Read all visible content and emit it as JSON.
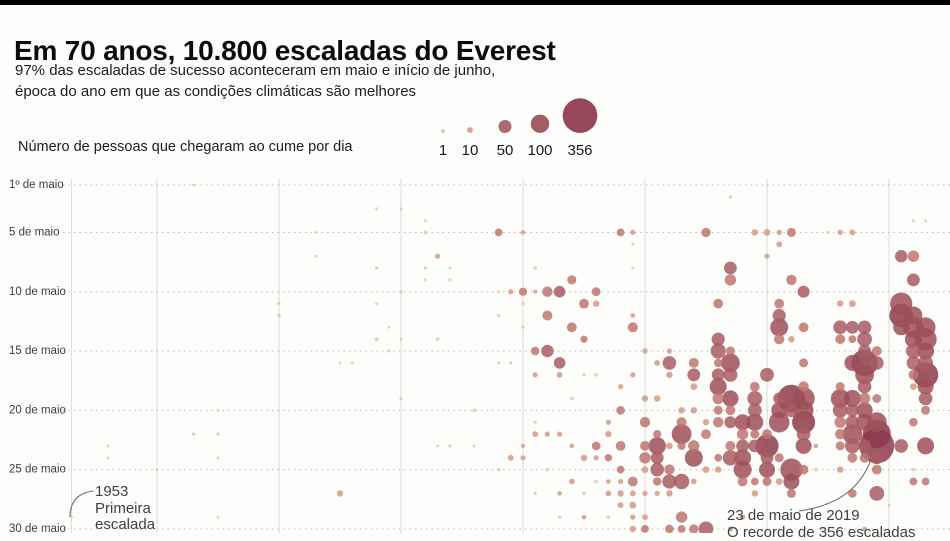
{
  "header": {
    "title": "Em 70 anos, 10.800 escaladas do Everest",
    "subtitle_line1": "97% das escaladas de sucesso aconteceram em maio e início de junho,",
    "subtitle_line2": "época do ano em que as condições climáticas são melhores"
  },
  "legend": {
    "label": "Número de pessoas que chegaram ao cume por dia",
    "items": [
      {
        "value": 1,
        "text": "1"
      },
      {
        "value": 10,
        "text": "10"
      },
      {
        "value": 50,
        "text": "50"
      },
      {
        "value": 100,
        "text": "100"
      },
      {
        "value": 356,
        "text": "356"
      }
    ]
  },
  "annotations": {
    "first_ascent": {
      "line1": "1953",
      "line2": "Primeira",
      "line3": "escalada"
    },
    "record_day": {
      "line1": "23 de maio de 2019",
      "line2": "O recorde de 356 escaladas"
    }
  },
  "chart_data": {
    "type": "scatter",
    "subtype": "bubble-timeline",
    "x_axis": {
      "unit": "year",
      "min": 1953,
      "max": 2023,
      "gridline_years": [
        1953,
        1960,
        1970,
        1980,
        1990,
        2000,
        2010,
        2020
      ]
    },
    "y_axis": {
      "unit": "day of May",
      "rows": [
        {
          "day": 1,
          "label": "1º de maio"
        },
        {
          "day": 5,
          "label": "5 de maio"
        },
        {
          "day": 10,
          "label": "10 de maio"
        },
        {
          "day": 15,
          "label": "15 de maio"
        },
        {
          "day": 20,
          "label": "20 de maio"
        },
        {
          "day": 25,
          "label": "25 de maio"
        },
        {
          "day": 30,
          "label": "30 de maio"
        }
      ]
    },
    "size_legend_counts": [
      1,
      10,
      50,
      100,
      356
    ],
    "color_scale": {
      "thresholds": [
        5,
        15,
        40,
        75,
        150
      ],
      "colors": [
        "#ecc49c",
        "#d49a82",
        "#bd7570",
        "#a85c62",
        "#9d4f58",
        "#8c3a4c"
      ]
    },
    "max_point": {
      "year": 2019,
      "day": 23,
      "summits": 356
    },
    "point_format": [
      "year",
      "day_of_may",
      "summits"
    ],
    "points": [
      [
        1953,
        29,
        2
      ],
      [
        1956,
        23,
        2
      ],
      [
        1956,
        24,
        2
      ],
      [
        1960,
        25,
        2
      ],
      [
        1963,
        1,
        2
      ],
      [
        1963,
        22,
        4
      ],
      [
        1965,
        20,
        2
      ],
      [
        1965,
        22,
        3
      ],
      [
        1965,
        24,
        2
      ],
      [
        1965,
        29,
        2
      ],
      [
        1970,
        11,
        3
      ],
      [
        1970,
        12,
        4
      ],
      [
        1973,
        5,
        2
      ],
      [
        1973,
        7,
        2
      ],
      [
        1975,
        16,
        2
      ],
      [
        1975,
        27,
        12
      ],
      [
        1976,
        16,
        2
      ],
      [
        1978,
        3,
        2
      ],
      [
        1978,
        8,
        3
      ],
      [
        1978,
        11,
        2
      ],
      [
        1978,
        14,
        4
      ],
      [
        1979,
        13,
        2
      ],
      [
        1979,
        15,
        3
      ],
      [
        1980,
        3,
        2
      ],
      [
        1980,
        10,
        3
      ],
      [
        1980,
        14,
        2
      ],
      [
        1980,
        19,
        3
      ],
      [
        1982,
        4,
        2
      ],
      [
        1982,
        5,
        4
      ],
      [
        1982,
        8,
        3
      ],
      [
        1982,
        9,
        2
      ],
      [
        1983,
        7,
        8
      ],
      [
        1983,
        14,
        4
      ],
      [
        1983,
        23,
        2
      ],
      [
        1984,
        8,
        2
      ],
      [
        1984,
        9,
        3
      ],
      [
        1984,
        23,
        3
      ],
      [
        1986,
        20,
        4
      ],
      [
        1986,
        23,
        2
      ],
      [
        1988,
        5,
        18
      ],
      [
        1988,
        10,
        2
      ],
      [
        1988,
        12,
        3
      ],
      [
        1988,
        16,
        2
      ],
      [
        1988,
        25,
        3
      ],
      [
        1989,
        10,
        8
      ],
      [
        1989,
        16,
        3
      ],
      [
        1989,
        24,
        10
      ],
      [
        1990,
        5,
        6
      ],
      [
        1990,
        10,
        20
      ],
      [
        1990,
        11,
        4
      ],
      [
        1990,
        13,
        3
      ],
      [
        1990,
        23,
        5
      ],
      [
        1990,
        24,
        8
      ],
      [
        1991,
        8,
        4
      ],
      [
        1991,
        10,
        5
      ],
      [
        1991,
        15,
        22
      ],
      [
        1991,
        17,
        8
      ],
      [
        1991,
        21,
        3
      ],
      [
        1991,
        22,
        10
      ],
      [
        1991,
        27,
        3
      ],
      [
        1992,
        10,
        32
      ],
      [
        1992,
        12,
        30
      ],
      [
        1992,
        15,
        45
      ],
      [
        1992,
        22,
        8
      ],
      [
        1992,
        25,
        4
      ],
      [
        1993,
        10,
        40
      ],
      [
        1993,
        16,
        40
      ],
      [
        1993,
        17,
        10
      ],
      [
        1993,
        22,
        8
      ],
      [
        1993,
        27,
        6
      ],
      [
        1993,
        29,
        3
      ],
      [
        1994,
        9,
        25
      ],
      [
        1994,
        13,
        28
      ],
      [
        1994,
        19,
        4
      ],
      [
        1994,
        23,
        6
      ],
      [
        1994,
        26,
        10
      ],
      [
        1995,
        11,
        28
      ],
      [
        1995,
        14,
        15
      ],
      [
        1995,
        17,
        3
      ],
      [
        1995,
        24,
        12
      ],
      [
        1995,
        27,
        4
      ],
      [
        1995,
        29,
        6
      ],
      [
        1996,
        10,
        23
      ],
      [
        1996,
        11,
        12
      ],
      [
        1996,
        17,
        4
      ],
      [
        1996,
        23,
        22
      ],
      [
        1996,
        24,
        8
      ],
      [
        1996,
        26,
        4
      ],
      [
        1997,
        21,
        8
      ],
      [
        1997,
        22,
        12
      ],
      [
        1997,
        24,
        16
      ],
      [
        1997,
        26,
        6
      ],
      [
        1997,
        27,
        10
      ],
      [
        1997,
        29,
        4
      ],
      [
        1998,
        5,
        18
      ],
      [
        1998,
        18,
        8
      ],
      [
        1998,
        20,
        22
      ],
      [
        1998,
        23,
        28
      ],
      [
        1998,
        25,
        18
      ],
      [
        1998,
        26,
        8
      ],
      [
        1998,
        27,
        12
      ],
      [
        1998,
        28,
        10
      ],
      [
        1999,
        5,
        8
      ],
      [
        1999,
        6,
        2
      ],
      [
        1999,
        8,
        2
      ],
      [
        1999,
        12,
        6
      ],
      [
        1999,
        13,
        30
      ],
      [
        1999,
        17,
        8
      ],
      [
        1999,
        26,
        28
      ],
      [
        1999,
        27,
        10
      ],
      [
        1999,
        28,
        14
      ],
      [
        1999,
        29,
        8
      ],
      [
        1999,
        30,
        12
      ],
      [
        2000,
        15,
        8
      ],
      [
        2000,
        19,
        12
      ],
      [
        2000,
        21,
        32
      ],
      [
        2000,
        23,
        28
      ],
      [
        2000,
        24,
        38
      ],
      [
        2000,
        25,
        14
      ],
      [
        2000,
        27,
        8
      ],
      [
        2000,
        29,
        10
      ],
      [
        2000,
        30,
        18
      ],
      [
        2001,
        16,
        10
      ],
      [
        2001,
        19,
        12
      ],
      [
        2001,
        22,
        20
      ],
      [
        2001,
        23,
        89
      ],
      [
        2001,
        24,
        48
      ],
      [
        2001,
        25,
        55
      ],
      [
        2001,
        26,
        22
      ],
      [
        2001,
        27,
        8
      ],
      [
        2002,
        15,
        8
      ],
      [
        2002,
        16,
        54
      ],
      [
        2002,
        17,
        12
      ],
      [
        2002,
        23,
        14
      ],
      [
        2002,
        25,
        32
      ],
      [
        2002,
        26,
        60
      ],
      [
        2002,
        27,
        12
      ],
      [
        2002,
        30,
        22
      ],
      [
        2003,
        20,
        12
      ],
      [
        2003,
        21,
        30
      ],
      [
        2003,
        22,
        115
      ],
      [
        2003,
        23,
        20
      ],
      [
        2003,
        26,
        70
      ],
      [
        2003,
        29,
        38
      ],
      [
        2003,
        30,
        18
      ],
      [
        2004,
        16,
        28
      ],
      [
        2004,
        17,
        48
      ],
      [
        2004,
        18,
        14
      ],
      [
        2004,
        20,
        12
      ],
      [
        2004,
        23,
        38
      ],
      [
        2004,
        24,
        95
      ],
      [
        2004,
        26,
        10
      ],
      [
        2004,
        30,
        26
      ],
      [
        2005,
        5,
        26
      ],
      [
        2005,
        21,
        12
      ],
      [
        2005,
        22,
        28
      ],
      [
        2005,
        25,
        14
      ],
      [
        2005,
        30,
        65
      ],
      [
        2006,
        11,
        28
      ],
      [
        2006,
        14,
        52
      ],
      [
        2006,
        15,
        68
      ],
      [
        2006,
        16,
        22
      ],
      [
        2006,
        17,
        48
      ],
      [
        2006,
        18,
        85
      ],
      [
        2006,
        19,
        38
      ],
      [
        2006,
        20,
        24
      ],
      [
        2006,
        21,
        32
      ],
      [
        2006,
        24,
        18
      ],
      [
        2006,
        25,
        12
      ],
      [
        2007,
        2,
        3
      ],
      [
        2007,
        8,
        48
      ],
      [
        2007,
        9,
        38
      ],
      [
        2007,
        15,
        24
      ],
      [
        2007,
        16,
        105
      ],
      [
        2007,
        17,
        58
      ],
      [
        2007,
        19,
        78
      ],
      [
        2007,
        20,
        28
      ],
      [
        2007,
        21,
        42
      ],
      [
        2007,
        23,
        28
      ],
      [
        2007,
        24,
        70
      ],
      [
        2007,
        30,
        8
      ],
      [
        2008,
        21,
        76
      ],
      [
        2008,
        22,
        38
      ],
      [
        2008,
        23,
        48
      ],
      [
        2008,
        24,
        85
      ],
      [
        2008,
        25,
        95
      ],
      [
        2008,
        26,
        28
      ],
      [
        2008,
        29,
        8
      ],
      [
        2009,
        5,
        12
      ],
      [
        2009,
        18,
        28
      ],
      [
        2009,
        19,
        66
      ],
      [
        2009,
        20,
        56
      ],
      [
        2009,
        21,
        85
      ],
      [
        2009,
        22,
        24
      ],
      [
        2009,
        23,
        48
      ],
      [
        2009,
        26,
        18
      ],
      [
        2009,
        27,
        12
      ],
      [
        2010,
        5,
        14
      ],
      [
        2010,
        7,
        8
      ],
      [
        2010,
        17,
        56
      ],
      [
        2010,
        22,
        28
      ],
      [
        2010,
        23,
        160
      ],
      [
        2010,
        24,
        48
      ],
      [
        2010,
        25,
        75
      ],
      [
        2010,
        26,
        24
      ],
      [
        2011,
        5,
        8
      ],
      [
        2011,
        6,
        10
      ],
      [
        2011,
        11,
        28
      ],
      [
        2011,
        12,
        52
      ],
      [
        2011,
        13,
        95
      ],
      [
        2011,
        14,
        32
      ],
      [
        2011,
        19,
        42
      ],
      [
        2011,
        20,
        75
      ],
      [
        2011,
        21,
        125
      ],
      [
        2011,
        24,
        24
      ],
      [
        2011,
        26,
        14
      ],
      [
        2012,
        5,
        24
      ],
      [
        2012,
        9,
        32
      ],
      [
        2012,
        14,
        12
      ],
      [
        2012,
        19,
        225
      ],
      [
        2012,
        20,
        55
      ],
      [
        2012,
        25,
        145
      ],
      [
        2012,
        26,
        75
      ],
      [
        2012,
        27,
        24
      ],
      [
        2013,
        10,
        42
      ],
      [
        2013,
        13,
        28
      ],
      [
        2013,
        16,
        24
      ],
      [
        2013,
        18,
        32
      ],
      [
        2013,
        19,
        145
      ],
      [
        2013,
        20,
        115
      ],
      [
        2013,
        21,
        155
      ],
      [
        2013,
        22,
        55
      ],
      [
        2013,
        23,
        75
      ],
      [
        2013,
        25,
        28
      ],
      [
        2014,
        23,
        6
      ],
      [
        2014,
        25,
        4
      ],
      [
        2015,
        5,
        3
      ],
      [
        2016,
        5,
        8
      ],
      [
        2016,
        11,
        12
      ],
      [
        2016,
        13,
        56
      ],
      [
        2016,
        14,
        28
      ],
      [
        2016,
        18,
        24
      ],
      [
        2016,
        19,
        105
      ],
      [
        2016,
        20,
        65
      ],
      [
        2016,
        21,
        38
      ],
      [
        2016,
        22,
        32
      ],
      [
        2016,
        23,
        24
      ],
      [
        2016,
        25,
        12
      ],
      [
        2017,
        5,
        10
      ],
      [
        2017,
        11,
        14
      ],
      [
        2017,
        13,
        48
      ],
      [
        2017,
        14,
        18
      ],
      [
        2017,
        16,
        75
      ],
      [
        2017,
        19,
        85
      ],
      [
        2017,
        20,
        48
      ],
      [
        2017,
        21,
        55
      ],
      [
        2017,
        22,
        115
      ],
      [
        2017,
        23,
        65
      ],
      [
        2017,
        24,
        28
      ],
      [
        2017,
        27,
        22
      ],
      [
        2018,
        13,
        55
      ],
      [
        2018,
        14,
        65
      ],
      [
        2018,
        15,
        48
      ],
      [
        2018,
        16,
        210
      ],
      [
        2018,
        17,
        105
      ],
      [
        2018,
        18,
        55
      ],
      [
        2018,
        19,
        38
      ],
      [
        2018,
        20,
        75
      ],
      [
        2018,
        21,
        85
      ],
      [
        2018,
        23,
        48
      ],
      [
        2018,
        24,
        28
      ],
      [
        2018,
        30,
        6
      ],
      [
        2019,
        15,
        28
      ],
      [
        2019,
        16,
        55
      ],
      [
        2019,
        19,
        24
      ],
      [
        2019,
        21,
        115
      ],
      [
        2019,
        22,
        230
      ],
      [
        2019,
        23,
        356
      ],
      [
        2019,
        24,
        48
      ],
      [
        2019,
        25,
        28
      ],
      [
        2019,
        27,
        65
      ],
      [
        2020,
        28,
        2
      ],
      [
        2021,
        7,
        45
      ],
      [
        2021,
        11,
        145
      ],
      [
        2021,
        12,
        165
      ],
      [
        2021,
        13,
        75
      ],
      [
        2021,
        23,
        55
      ],
      [
        2022,
        4,
        2
      ],
      [
        2022,
        7,
        38
      ],
      [
        2022,
        9,
        48
      ],
      [
        2022,
        12,
        95
      ],
      [
        2022,
        13,
        125
      ],
      [
        2022,
        14,
        85
      ],
      [
        2022,
        15,
        65
      ],
      [
        2022,
        16,
        55
      ],
      [
        2022,
        17,
        28
      ],
      [
        2022,
        18,
        14
      ],
      [
        2022,
        21,
        22
      ],
      [
        2022,
        25,
        4
      ],
      [
        2022,
        26,
        18
      ],
      [
        2023,
        4,
        2
      ],
      [
        2023,
        13,
        115
      ],
      [
        2023,
        14,
        145
      ],
      [
        2023,
        15,
        85
      ],
      [
        2023,
        16,
        65
      ],
      [
        2023,
        17,
        190
      ],
      [
        2023,
        18,
        75
      ],
      [
        2023,
        19,
        55
      ],
      [
        2023,
        20,
        24
      ],
      [
        2023,
        23,
        85
      ],
      [
        2023,
        26,
        18
      ]
    ]
  }
}
